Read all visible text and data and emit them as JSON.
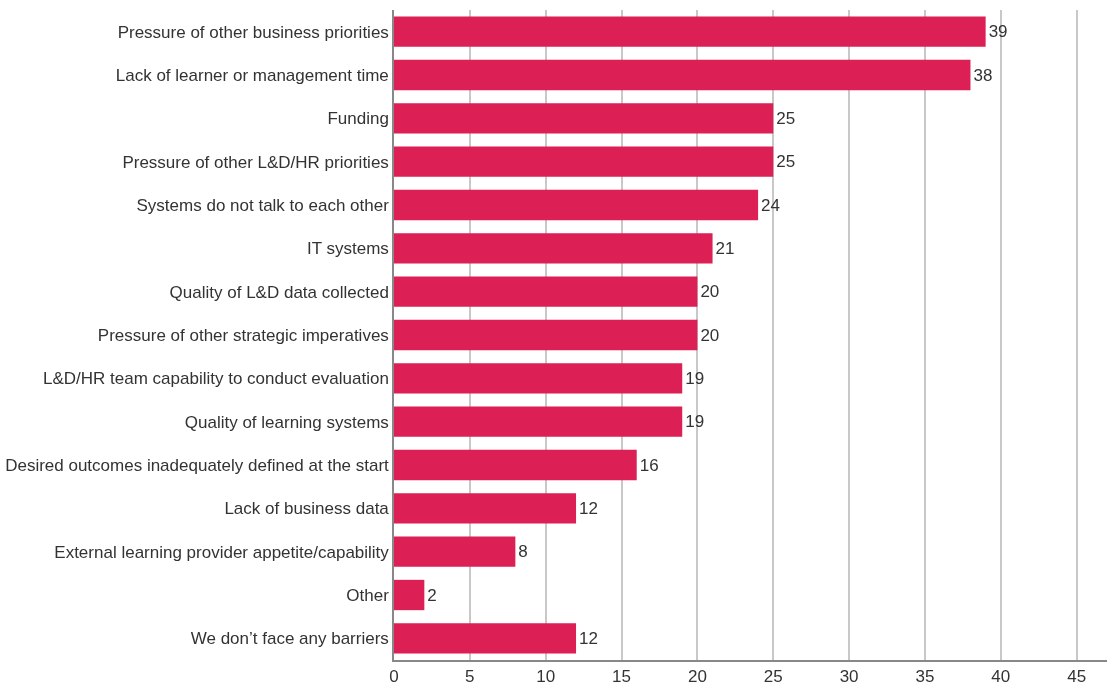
{
  "chart_data": {
    "type": "bar",
    "orientation": "horizontal",
    "categories": [
      "Pressure of other business priorities",
      "Lack of learner or management time",
      "Funding",
      "Pressure of other L&D/HR priorities",
      "Systems do not talk to each other",
      "IT systems",
      "Quality of L&D data collected",
      "Pressure of other strategic imperatives",
      "L&D/HR team capability to conduct evaluation",
      "Quality of learning systems",
      "Desired outcomes inadequately defined at the start",
      "Lack of business data",
      "External learning provider appetite/capability",
      "Other",
      "We don’t face any barriers"
    ],
    "values": [
      39,
      38,
      25,
      25,
      24,
      21,
      20,
      20,
      19,
      19,
      16,
      12,
      8,
      2,
      12
    ],
    "color": "#dc1f55",
    "data_labels": true,
    "xlim": [
      0,
      47
    ],
    "xticks": [
      0,
      5,
      10,
      15,
      20,
      25,
      30,
      35,
      40,
      45
    ],
    "grid": "x",
    "legend": false
  }
}
